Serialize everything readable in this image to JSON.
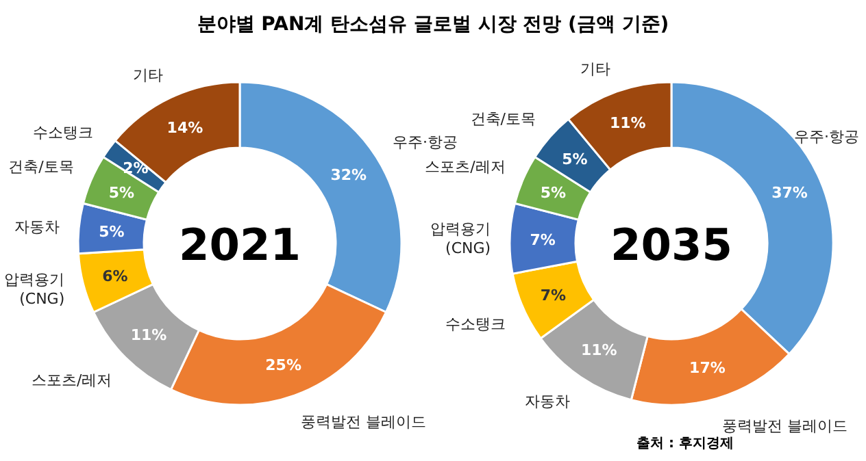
{
  "chart_data": [
    {
      "type": "donut",
      "title": "분야별 PAN계 탄소섬유 글로벌 시장 전망 (금액 기준)",
      "annotations": [
        "2021"
      ],
      "categories": [
        "우주·항공",
        "풍력발전 블레이드",
        "스포츠/레저",
        "압력용기 (CNG)",
        "자동차",
        "건축/토목",
        "수소탱크",
        "기타"
      ],
      "values": [
        32,
        25,
        11,
        6,
        5,
        5,
        2,
        14
      ],
      "value_labels": [
        "32%",
        "25%",
        "11%",
        "6%",
        "5%",
        "5%",
        "2%",
        "14%"
      ],
      "colors": [
        "#5b9bd5",
        "#ed7d31",
        "#a5a5a5",
        "#ffc000",
        "#4472c4",
        "#70ad47",
        "#255e91",
        "#9e480e"
      ]
    },
    {
      "type": "donut",
      "annotations": [
        "2035",
        "출처 : 후지경제"
      ],
      "categories": [
        "우주·항공",
        "풍력발전 블레이드",
        "자동차",
        "수소탱크",
        "압력용기 (CNG)",
        "스포츠/레저",
        "건축/토목",
        "기타"
      ],
      "values": [
        37,
        17,
        11,
        7,
        7,
        5,
        5,
        11
      ],
      "value_labels": [
        "37%",
        "17%",
        "11%",
        "7%",
        "7%",
        "5%",
        "5%",
        "11%"
      ],
      "colors": [
        "#5b9bd5",
        "#ed7d31",
        "#a5a5a5",
        "#ffc000",
        "#4472c4",
        "#70ad47",
        "#255e91",
        "#9e480e"
      ]
    }
  ]
}
